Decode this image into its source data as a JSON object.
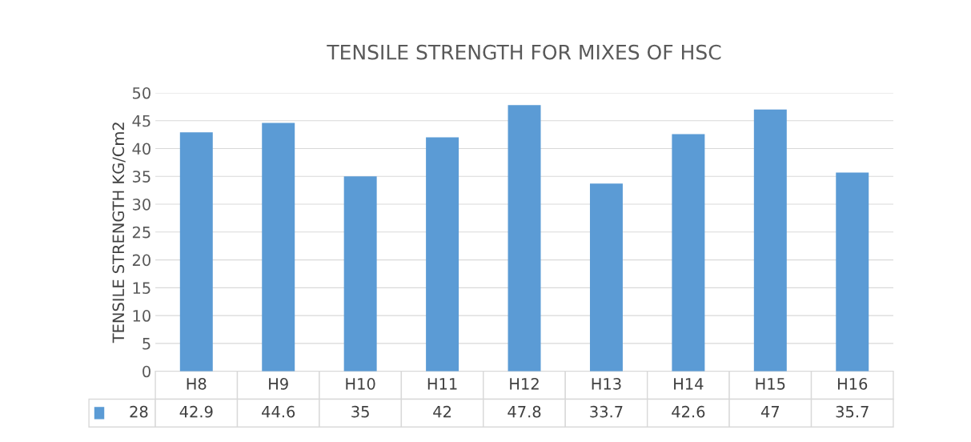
{
  "chart_data": {
    "type": "bar",
    "title": "TENSILE STRENGTH FOR MIXES OF HSC",
    "ylabel": "TENSILE STRENGTH KG/Cm2",
    "categories": [
      "H8",
      "H9",
      "H10",
      "H11",
      "H12",
      "H13",
      "H14",
      "H15",
      "H16"
    ],
    "series": [
      {
        "name": "28",
        "color": "#5b9bd5",
        "values": [
          42.9,
          44.6,
          35,
          42,
          47.8,
          33.7,
          42.6,
          47,
          35.7
        ]
      }
    ],
    "ylim": [
      0,
      50
    ],
    "yticks": [
      0,
      5,
      10,
      15,
      20,
      25,
      30,
      35,
      40,
      45,
      50
    ],
    "grid": "y",
    "data_labels": true,
    "legend": "bottom"
  }
}
